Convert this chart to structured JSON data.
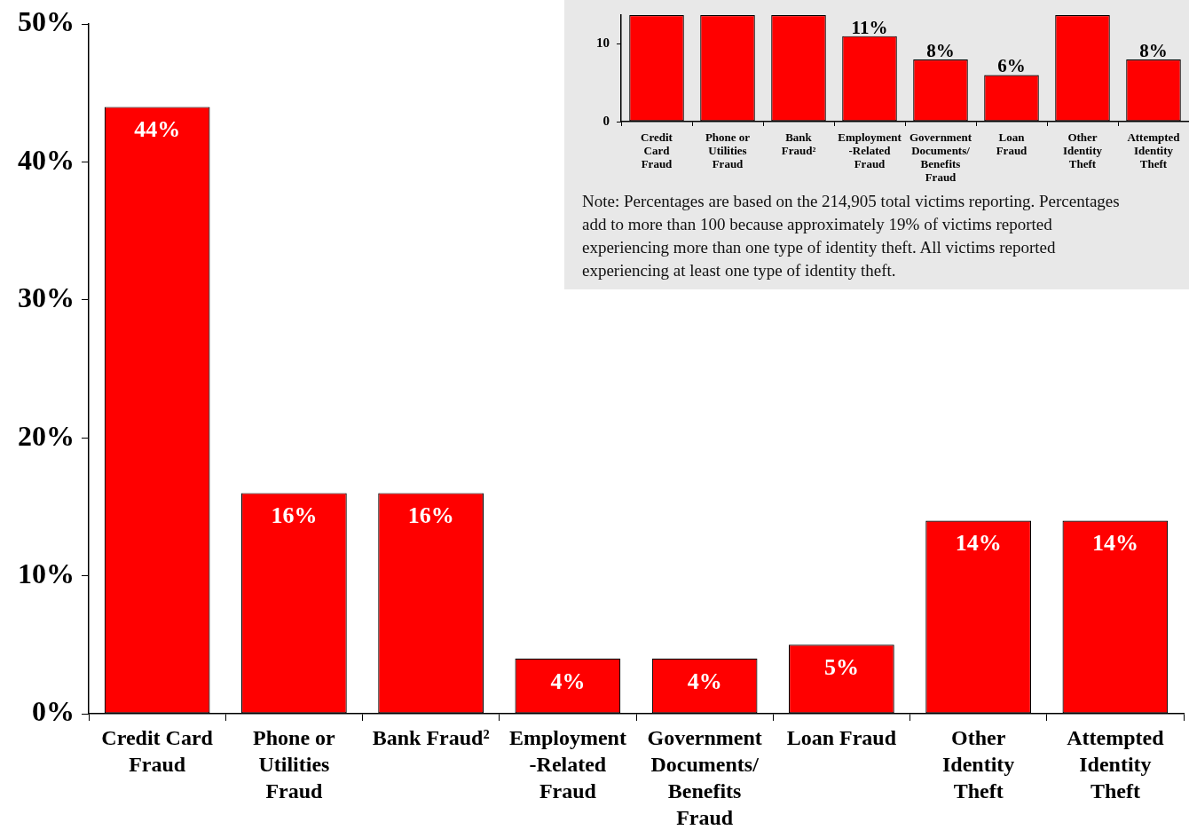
{
  "chart_data": [
    {
      "type": "bar",
      "categories": [
        "Credit Card Fraud",
        "Phone or Utilities Fraud",
        "Bank Fraud²",
        "Employment -Related Fraud",
        "Government Documents/ Benefits Fraud",
        "Loan Fraud",
        "Other Identity Theft",
        "Attempted Identity Theft"
      ],
      "values": [
        44,
        16,
        16,
        4,
        4,
        5,
        14,
        14
      ],
      "color": "#ff0000",
      "value_labels": [
        "44%",
        "16%",
        "16%",
        "4%",
        "4%",
        "5%",
        "14%",
        "14%"
      ],
      "ylim": [
        0,
        50
      ],
      "yticks": [
        {
          "value": 0,
          "label": "0%"
        },
        {
          "value": 10,
          "label": "10%"
        },
        {
          "value": 20,
          "label": "20%"
        },
        {
          "value": 30,
          "label": "30%"
        },
        {
          "value": 40,
          "label": "40%"
        },
        {
          "value": 50,
          "label": "50%"
        }
      ],
      "grid": false,
      "legend": false
    },
    {
      "type": "bar",
      "categories": [
        "Credit Card Fraud",
        "Phone or Utilities Fraud",
        "Bank Fraud²",
        "Employment -Related Fraud",
        "Government Documents/ Benefits Fraud",
        "Loan Fraud",
        "Other Identity Theft",
        "Attempted Identity Theft"
      ],
      "values": [
        13.7,
        13.7,
        13.7,
        11,
        8,
        6,
        13.7,
        8
      ],
      "color": "#ff0000",
      "value_labels": [
        null,
        null,
        null,
        "11%",
        "8%",
        "6%",
        null,
        "8%"
      ],
      "ylim": [
        0,
        13.7
      ],
      "yticks": [
        0,
        10
      ],
      "grid": false,
      "legend": false,
      "annotations": [
        "Note: Percentages are based on the 214,905 total victims reporting. Percentages add to more than 100 because approximately 19% of victims reported experiencing more than one type of identity theft.  All victims reported experiencing at least one type of identity theft."
      ]
    }
  ]
}
